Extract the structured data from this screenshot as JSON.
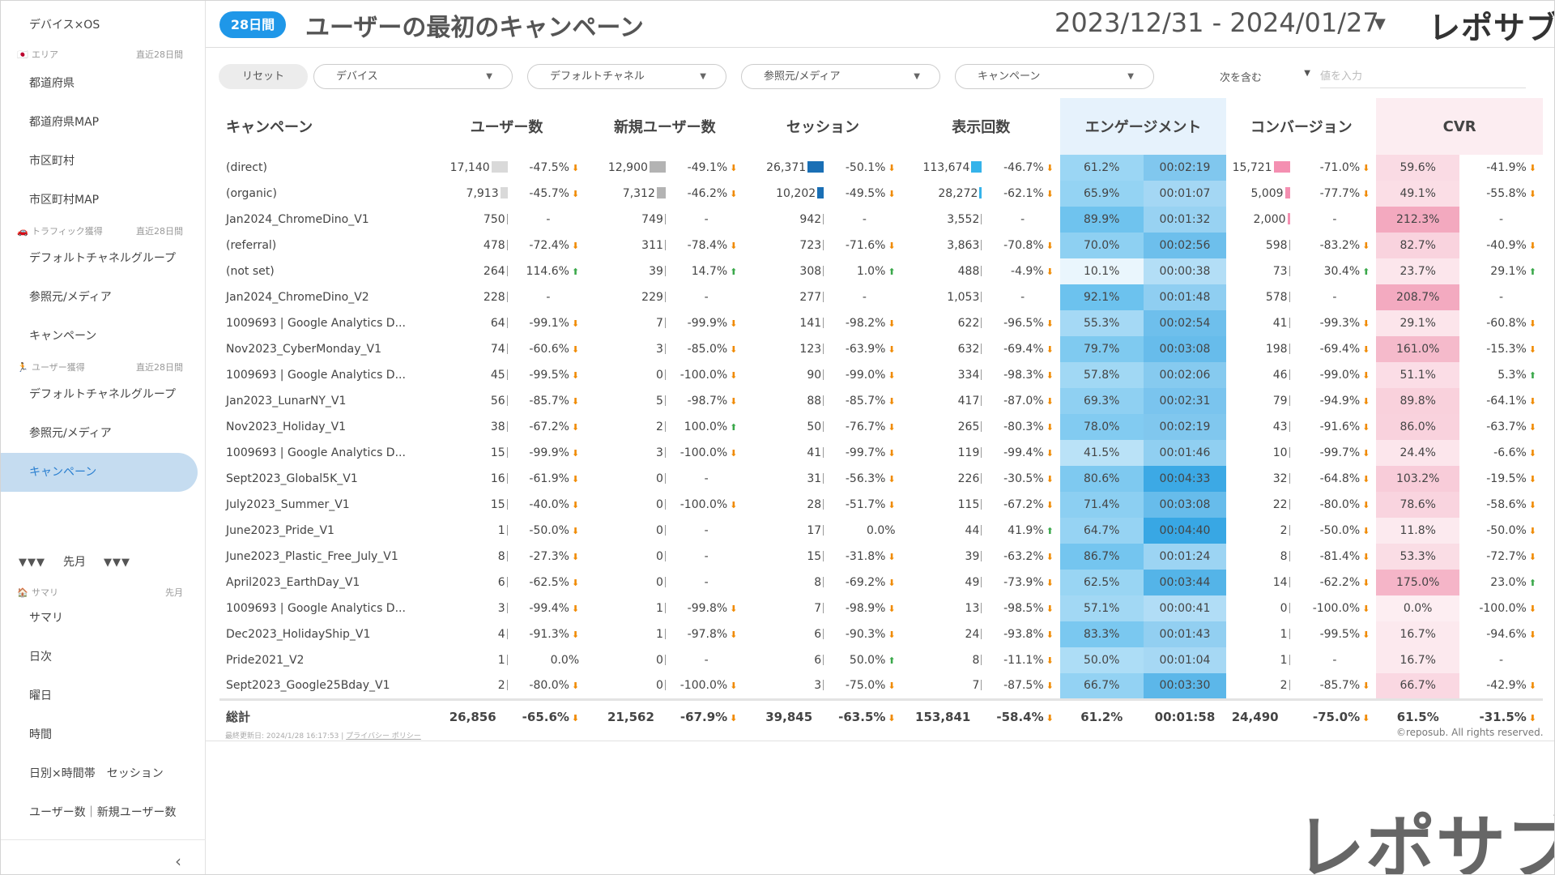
{
  "sidebar": {
    "top_label": "デバイス×OS",
    "sections": [
      {
        "icon": "🇯🇵",
        "label": "エリア",
        "period": "直近28日間",
        "items": [
          "都道府県",
          "都道府県MAP",
          "市区町村",
          "市区町村MAP"
        ]
      },
      {
        "icon": "🚗",
        "label": "トラフィック獲得",
        "period": "直近28日間",
        "items": [
          "デフォルトチャネルグループ",
          "参照元/メディア",
          "キャンペーン"
        ]
      },
      {
        "icon": "🏃",
        "label": "ユーザー獲得",
        "period": "直近28日間",
        "items": [
          "デフォルトチャネルグループ",
          "参照元/メディア",
          "キャンペーン"
        ]
      }
    ],
    "month_header": {
      "marks": "▼▼▼",
      "label": "先月"
    },
    "summary_section": {
      "icon": "🏠",
      "label": "サマリ",
      "period": "先月",
      "items": [
        "サマリ",
        "日次",
        "曜日",
        "時間",
        "日別×時間帯　セッション",
        "ユーザー数｜新規ユーザー数"
      ]
    },
    "collapse_icon": "‹"
  },
  "header": {
    "badge": "28日間",
    "title": "ユーザーの最初のキャンペーン",
    "date_range": "2023/12/31 - 2024/01/27",
    "date_arrow": "▼",
    "logo": "レポサブ"
  },
  "filters": {
    "reset": "リセット",
    "dropdowns": [
      "デバイス",
      "デフォルトチャネル",
      "参照元/メディア",
      "キャンペーン"
    ],
    "arrow": "▼",
    "include": "次を含む",
    "value_placeholder": "値を入力"
  },
  "table": {
    "headers": [
      "キャンペーン",
      "ユーザー数",
      "新規ユーザー数",
      "セッション",
      "表示回数",
      "エンゲージメント",
      "コンバージョン",
      "CVR"
    ],
    "rows": [
      [
        "(direct)",
        "17,140",
        "-47.5%",
        "12,900",
        "-49.1%",
        "26,371",
        "-50.1%",
        "113,674",
        "-46.7%",
        "61.2%",
        "00:02:19",
        "15,721",
        "-71.0%",
        "59.6%",
        "-41.9%"
      ],
      [
        "(organic)",
        "7,913",
        "-45.7%",
        "7,312",
        "-46.2%",
        "10,202",
        "-49.5%",
        "28,272",
        "-62.1%",
        "65.9%",
        "00:01:07",
        "5,009",
        "-77.7%",
        "49.1%",
        "-55.8%"
      ],
      [
        "Jan2024_ChromeDino_V1",
        "750",
        "-",
        "749",
        "-",
        "942",
        "-",
        "3,552",
        "-",
        "89.9%",
        "00:01:32",
        "2,000",
        "-",
        "212.3%",
        "-"
      ],
      [
        "(referral)",
        "478",
        "-72.4%",
        "311",
        "-78.4%",
        "723",
        "-71.6%",
        "3,863",
        "-70.8%",
        "70.0%",
        "00:02:56",
        "598",
        "-83.2%",
        "82.7%",
        "-40.9%"
      ],
      [
        "(not set)",
        "264",
        "114.6%",
        "39",
        "14.7%",
        "308",
        "1.0%",
        "488",
        "-4.9%",
        "10.1%",
        "00:00:38",
        "73",
        "30.4%",
        "23.7%",
        "29.1%"
      ],
      [
        "Jan2024_ChromeDino_V2",
        "228",
        "-",
        "229",
        "-",
        "277",
        "-",
        "1,053",
        "-",
        "92.1%",
        "00:01:48",
        "578",
        "-",
        "208.7%",
        "-"
      ],
      [
        "1009693 | Google Analytics D...",
        "64",
        "-99.1%",
        "7",
        "-99.9%",
        "141",
        "-98.2%",
        "622",
        "-96.5%",
        "55.3%",
        "00:02:54",
        "41",
        "-99.3%",
        "29.1%",
        "-60.8%"
      ],
      [
        "Nov2023_CyberMonday_V1",
        "74",
        "-60.6%",
        "3",
        "-85.0%",
        "123",
        "-63.9%",
        "632",
        "-69.4%",
        "79.7%",
        "00:03:08",
        "198",
        "-69.4%",
        "161.0%",
        "-15.3%"
      ],
      [
        "1009693 | Google Analytics D...",
        "45",
        "-99.5%",
        "0",
        "-100.0%",
        "90",
        "-99.0%",
        "334",
        "-98.3%",
        "57.8%",
        "00:02:06",
        "46",
        "-99.0%",
        "51.1%",
        "5.3%"
      ],
      [
        "Jan2023_LunarNY_V1",
        "56",
        "-85.7%",
        "5",
        "-98.7%",
        "88",
        "-85.7%",
        "417",
        "-87.0%",
        "69.3%",
        "00:02:31",
        "79",
        "-94.9%",
        "89.8%",
        "-64.1%"
      ],
      [
        "Nov2023_Holiday_V1",
        "38",
        "-67.2%",
        "2",
        "100.0%",
        "50",
        "-76.7%",
        "265",
        "-80.3%",
        "78.0%",
        "00:02:19",
        "43",
        "-91.6%",
        "86.0%",
        "-63.7%"
      ],
      [
        "1009693 | Google Analytics D...",
        "15",
        "-99.9%",
        "3",
        "-100.0%",
        "41",
        "-99.7%",
        "119",
        "-99.4%",
        "41.5%",
        "00:01:46",
        "10",
        "-99.7%",
        "24.4%",
        "-6.6%"
      ],
      [
        "Sept2023_Global5K_V1",
        "16",
        "-61.9%",
        "0",
        "-",
        "31",
        "-56.3%",
        "226",
        "-30.5%",
        "80.6%",
        "00:04:33",
        "32",
        "-64.8%",
        "103.2%",
        "-19.5%"
      ],
      [
        "July2023_Summer_V1",
        "15",
        "-40.0%",
        "0",
        "-100.0%",
        "28",
        "-51.7%",
        "115",
        "-67.2%",
        "71.4%",
        "00:03:08",
        "22",
        "-80.0%",
        "78.6%",
        "-58.6%"
      ],
      [
        "June2023_Pride_V1",
        "1",
        "-50.0%",
        "0",
        "-",
        "17",
        "0.0%",
        "44",
        "41.9%",
        "64.7%",
        "00:04:40",
        "2",
        "-50.0%",
        "11.8%",
        "-50.0%"
      ],
      [
        "June2023_Plastic_Free_July_V1",
        "8",
        "-27.3%",
        "0",
        "-",
        "15",
        "-31.8%",
        "39",
        "-63.2%",
        "86.7%",
        "00:01:24",
        "8",
        "-81.4%",
        "53.3%",
        "-72.7%"
      ],
      [
        "April2023_EarthDay_V1",
        "6",
        "-62.5%",
        "0",
        "-",
        "8",
        "-69.2%",
        "49",
        "-73.9%",
        "62.5%",
        "00:03:44",
        "14",
        "-62.2%",
        "175.0%",
        "23.0%"
      ],
      [
        "1009693 | Google Analytics D...",
        "3",
        "-99.4%",
        "1",
        "-99.8%",
        "7",
        "-98.9%",
        "13",
        "-98.5%",
        "57.1%",
        "00:00:41",
        "0",
        "-100.0%",
        "0.0%",
        "-100.0%"
      ],
      [
        "Dec2023_HolidayShip_V1",
        "4",
        "-91.3%",
        "1",
        "-97.8%",
        "6",
        "-90.3%",
        "24",
        "-93.8%",
        "83.3%",
        "00:01:43",
        "1",
        "-99.5%",
        "16.7%",
        "-94.6%"
      ],
      [
        "Pride2021_V2",
        "1",
        "0.0%",
        "0",
        "-",
        "6",
        "50.0%",
        "8",
        "-11.1%",
        "50.0%",
        "00:01:04",
        "1",
        "-",
        "16.7%",
        "-"
      ],
      [
        "Sept2023_Google25Bday_V1",
        "2",
        "-80.0%",
        "0",
        "-100.0%",
        "3",
        "-75.0%",
        "7",
        "-87.5%",
        "66.7%",
        "00:03:30",
        "2",
        "-85.7%",
        "66.7%",
        "-42.9%"
      ]
    ],
    "totals": [
      "総計",
      "26,856",
      "-65.6%",
      "21,562",
      "-67.9%",
      "39,845",
      "-63.5%",
      "153,841",
      "-58.4%",
      "61.2%",
      "00:01:58",
      "24,490",
      "-75.0%",
      "61.5%",
      "-31.5%"
    ]
  },
  "footer": {
    "updated": "最終更新日: 2024/1/28 16:17:53",
    "separator": "|",
    "privacy": "プライバシー ポリシー",
    "copyright": "©reposub. All rights reserved."
  },
  "colors": {
    "badge": "#1f97e8",
    "users_bar": "#d9d9d9",
    "newusers_bar": "#b3b3b3",
    "sessions_bar": "#1a6fb5",
    "views_bar": "#35b3ea",
    "conv_bar": "#f48fb1",
    "trend_down": "#f08a00",
    "trend_up": "#3aa84a"
  },
  "watermark": "レポサブ"
}
